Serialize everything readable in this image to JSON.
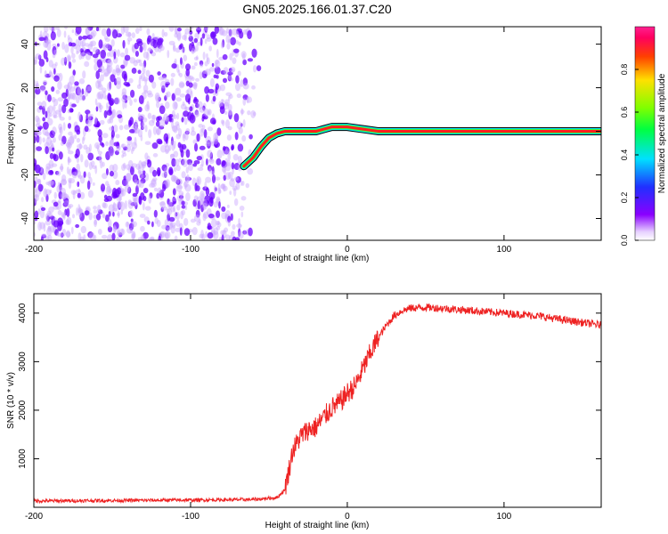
{
  "title": "GN05.2025.166.01.37.C20",
  "colors": {
    "noise_dark": "#6a00ff",
    "noise_light": "#c9a6ff",
    "snr_line": "#ee2222",
    "axis": "#000000"
  },
  "chart_data": [
    {
      "type": "heatmap",
      "title": "GN05.2025.166.01.37.C20",
      "xlabel": "Height of straight line (km)",
      "ylabel": "Frequency (Hz)",
      "xlim": [
        -200,
        162
      ],
      "ylim": [
        -50,
        48
      ],
      "xticks": [
        -200,
        -100,
        0,
        100
      ],
      "yticks": [
        -40,
        -20,
        0,
        20,
        40
      ],
      "grid": false,
      "noise_region_x": [
        -200,
        -55
      ],
      "signal_track": {
        "x": [
          -66,
          -60,
          -55,
          -50,
          -45,
          -40,
          -30,
          -20,
          -15,
          -10,
          0,
          10,
          20,
          40,
          60,
          80,
          100,
          120,
          140,
          162
        ],
        "y": [
          -16,
          -12,
          -7,
          -3,
          -1,
          0,
          0,
          0,
          1,
          2,
          2,
          1,
          0,
          0,
          0,
          0,
          0,
          0,
          0,
          0
        ]
      },
      "colorbar": {
        "label": "Normalized spectral amplitude",
        "range": [
          0,
          1
        ],
        "ticks": [
          "0.0",
          "0.2",
          "0.4",
          "0.6",
          "0.8"
        ],
        "colormap": "rainbow (violet-blue-cyan-green-yellow-red-magenta)"
      }
    },
    {
      "type": "line",
      "xlabel": "Height of straight line (km)",
      "ylabel": "SNR (10 * v/v)",
      "xlim": [
        -200,
        162
      ],
      "ylim": [
        0,
        4400
      ],
      "xticks": [
        -200,
        -100,
        0,
        100
      ],
      "yticks": [
        1000,
        2000,
        3000,
        4000
      ],
      "grid": false,
      "series": [
        {
          "x": [
            -200,
            -150,
            -100,
            -60,
            -45,
            -40,
            -37,
            -35,
            -30,
            -25,
            -20,
            -15,
            -10,
            -5,
            0,
            5,
            10,
            15,
            20,
            25,
            30,
            35,
            40,
            50,
            60,
            80,
            100,
            120,
            140,
            162
          ],
          "y": [
            130,
            140,
            150,
            160,
            200,
            350,
            800,
            1150,
            1450,
            1600,
            1650,
            1850,
            2050,
            2150,
            2350,
            2500,
            2850,
            3200,
            3500,
            3750,
            3950,
            4050,
            4100,
            4120,
            4100,
            4050,
            4000,
            3950,
            3850,
            3750
          ]
        }
      ]
    }
  ]
}
